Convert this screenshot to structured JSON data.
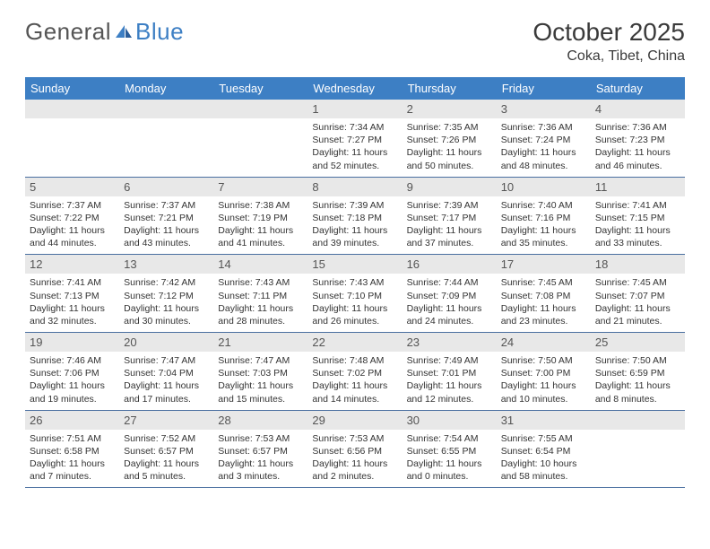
{
  "logo": {
    "text1": "General",
    "text2": "Blue"
  },
  "title": "October 2025",
  "location": "Coka, Tibet, China",
  "colors": {
    "header_bg": "#3d7fc4",
    "header_text": "#ffffff",
    "daynum_bg": "#e8e8e8",
    "daynum_text": "#555555",
    "body_text": "#333333",
    "rule": "#4a6fa0",
    "logo_gray": "#555555",
    "logo_blue": "#3d7fc4",
    "page_bg": "#ffffff"
  },
  "weekdays": [
    "Sunday",
    "Monday",
    "Tuesday",
    "Wednesday",
    "Thursday",
    "Friday",
    "Saturday"
  ],
  "calendar": {
    "first_weekday_index": 3,
    "days": [
      {
        "n": 1,
        "sunrise": "7:34 AM",
        "sunset": "7:27 PM",
        "dl1": "Daylight: 11 hours",
        "dl2": "and 52 minutes."
      },
      {
        "n": 2,
        "sunrise": "7:35 AM",
        "sunset": "7:26 PM",
        "dl1": "Daylight: 11 hours",
        "dl2": "and 50 minutes."
      },
      {
        "n": 3,
        "sunrise": "7:36 AM",
        "sunset": "7:24 PM",
        "dl1": "Daylight: 11 hours",
        "dl2": "and 48 minutes."
      },
      {
        "n": 4,
        "sunrise": "7:36 AM",
        "sunset": "7:23 PM",
        "dl1": "Daylight: 11 hours",
        "dl2": "and 46 minutes."
      },
      {
        "n": 5,
        "sunrise": "7:37 AM",
        "sunset": "7:22 PM",
        "dl1": "Daylight: 11 hours",
        "dl2": "and 44 minutes."
      },
      {
        "n": 6,
        "sunrise": "7:37 AM",
        "sunset": "7:21 PM",
        "dl1": "Daylight: 11 hours",
        "dl2": "and 43 minutes."
      },
      {
        "n": 7,
        "sunrise": "7:38 AM",
        "sunset": "7:19 PM",
        "dl1": "Daylight: 11 hours",
        "dl2": "and 41 minutes."
      },
      {
        "n": 8,
        "sunrise": "7:39 AM",
        "sunset": "7:18 PM",
        "dl1": "Daylight: 11 hours",
        "dl2": "and 39 minutes."
      },
      {
        "n": 9,
        "sunrise": "7:39 AM",
        "sunset": "7:17 PM",
        "dl1": "Daylight: 11 hours",
        "dl2": "and 37 minutes."
      },
      {
        "n": 10,
        "sunrise": "7:40 AM",
        "sunset": "7:16 PM",
        "dl1": "Daylight: 11 hours",
        "dl2": "and 35 minutes."
      },
      {
        "n": 11,
        "sunrise": "7:41 AM",
        "sunset": "7:15 PM",
        "dl1": "Daylight: 11 hours",
        "dl2": "and 33 minutes."
      },
      {
        "n": 12,
        "sunrise": "7:41 AM",
        "sunset": "7:13 PM",
        "dl1": "Daylight: 11 hours",
        "dl2": "and 32 minutes."
      },
      {
        "n": 13,
        "sunrise": "7:42 AM",
        "sunset": "7:12 PM",
        "dl1": "Daylight: 11 hours",
        "dl2": "and 30 minutes."
      },
      {
        "n": 14,
        "sunrise": "7:43 AM",
        "sunset": "7:11 PM",
        "dl1": "Daylight: 11 hours",
        "dl2": "and 28 minutes."
      },
      {
        "n": 15,
        "sunrise": "7:43 AM",
        "sunset": "7:10 PM",
        "dl1": "Daylight: 11 hours",
        "dl2": "and 26 minutes."
      },
      {
        "n": 16,
        "sunrise": "7:44 AM",
        "sunset": "7:09 PM",
        "dl1": "Daylight: 11 hours",
        "dl2": "and 24 minutes."
      },
      {
        "n": 17,
        "sunrise": "7:45 AM",
        "sunset": "7:08 PM",
        "dl1": "Daylight: 11 hours",
        "dl2": "and 23 minutes."
      },
      {
        "n": 18,
        "sunrise": "7:45 AM",
        "sunset": "7:07 PM",
        "dl1": "Daylight: 11 hours",
        "dl2": "and 21 minutes."
      },
      {
        "n": 19,
        "sunrise": "7:46 AM",
        "sunset": "7:06 PM",
        "dl1": "Daylight: 11 hours",
        "dl2": "and 19 minutes."
      },
      {
        "n": 20,
        "sunrise": "7:47 AM",
        "sunset": "7:04 PM",
        "dl1": "Daylight: 11 hours",
        "dl2": "and 17 minutes."
      },
      {
        "n": 21,
        "sunrise": "7:47 AM",
        "sunset": "7:03 PM",
        "dl1": "Daylight: 11 hours",
        "dl2": "and 15 minutes."
      },
      {
        "n": 22,
        "sunrise": "7:48 AM",
        "sunset": "7:02 PM",
        "dl1": "Daylight: 11 hours",
        "dl2": "and 14 minutes."
      },
      {
        "n": 23,
        "sunrise": "7:49 AM",
        "sunset": "7:01 PM",
        "dl1": "Daylight: 11 hours",
        "dl2": "and 12 minutes."
      },
      {
        "n": 24,
        "sunrise": "7:50 AM",
        "sunset": "7:00 PM",
        "dl1": "Daylight: 11 hours",
        "dl2": "and 10 minutes."
      },
      {
        "n": 25,
        "sunrise": "7:50 AM",
        "sunset": "6:59 PM",
        "dl1": "Daylight: 11 hours",
        "dl2": "and 8 minutes."
      },
      {
        "n": 26,
        "sunrise": "7:51 AM",
        "sunset": "6:58 PM",
        "dl1": "Daylight: 11 hours",
        "dl2": "and 7 minutes."
      },
      {
        "n": 27,
        "sunrise": "7:52 AM",
        "sunset": "6:57 PM",
        "dl1": "Daylight: 11 hours",
        "dl2": "and 5 minutes."
      },
      {
        "n": 28,
        "sunrise": "7:53 AM",
        "sunset": "6:57 PM",
        "dl1": "Daylight: 11 hours",
        "dl2": "and 3 minutes."
      },
      {
        "n": 29,
        "sunrise": "7:53 AM",
        "sunset": "6:56 PM",
        "dl1": "Daylight: 11 hours",
        "dl2": "and 2 minutes."
      },
      {
        "n": 30,
        "sunrise": "7:54 AM",
        "sunset": "6:55 PM",
        "dl1": "Daylight: 11 hours",
        "dl2": "and 0 minutes."
      },
      {
        "n": 31,
        "sunrise": "7:55 AM",
        "sunset": "6:54 PM",
        "dl1": "Daylight: 10 hours",
        "dl2": "and 58 minutes."
      }
    ]
  },
  "labels": {
    "sunrise_prefix": "Sunrise: ",
    "sunset_prefix": "Sunset: "
  }
}
